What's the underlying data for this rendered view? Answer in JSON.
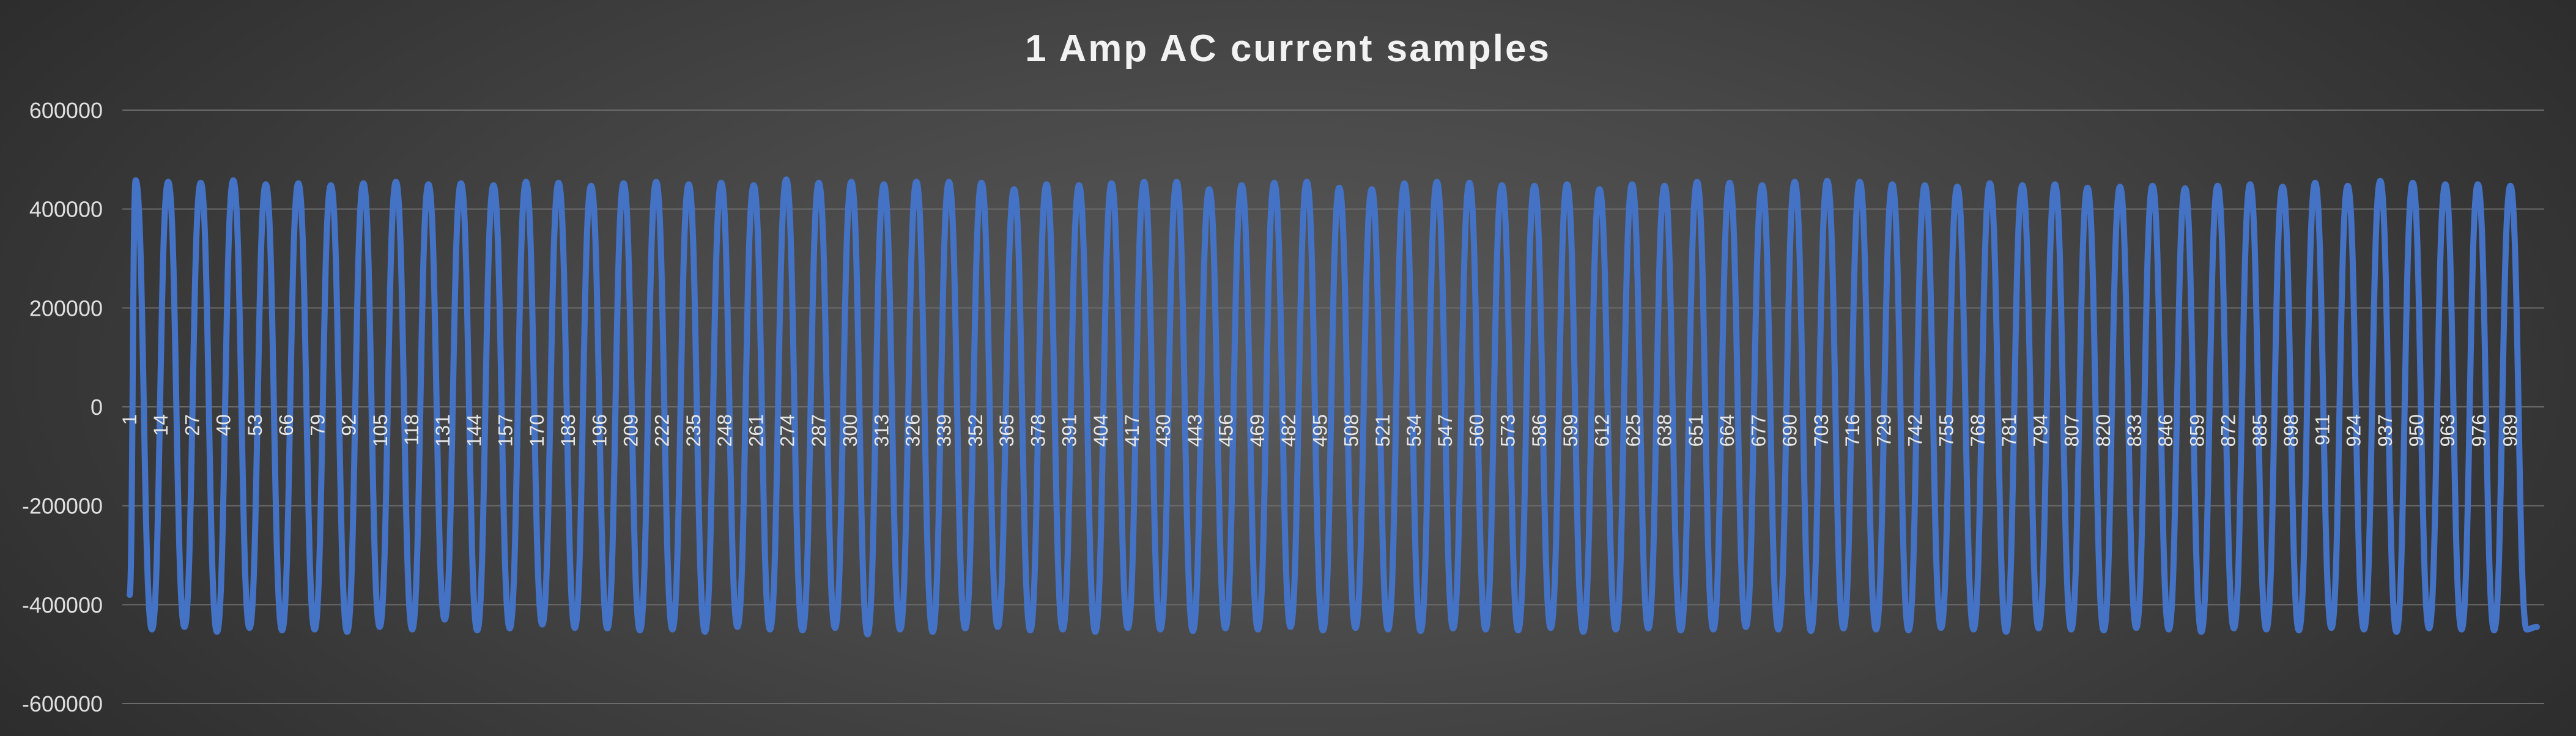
{
  "chart_data": {
    "type": "line",
    "title": "1 Amp AC current samples",
    "xlabel": "",
    "ylabel": "",
    "ylim": [
      -600000,
      600000
    ],
    "yticks": [
      600000,
      400000,
      200000,
      0,
      -200000,
      -400000,
      -600000
    ],
    "ytick_labels": [
      "600000",
      "400000",
      "200000",
      "0",
      "-200000",
      "-400000",
      "-600000"
    ],
    "x_range": [
      1,
      1000
    ],
    "xticks": [
      1,
      14,
      27,
      40,
      53,
      66,
      79,
      92,
      105,
      118,
      131,
      144,
      157,
      170,
      183,
      196,
      209,
      222,
      235,
      248,
      261,
      274,
      287,
      300,
      313,
      326,
      339,
      352,
      365,
      378,
      391,
      404,
      417,
      430,
      443,
      456,
      469,
      482,
      495,
      508,
      521,
      534,
      547,
      560,
      573,
      586,
      599,
      612,
      625,
      638,
      651,
      664,
      677,
      690,
      703,
      716,
      729,
      742,
      755,
      768,
      781,
      794,
      807,
      820,
      833,
      846,
      859,
      872,
      885,
      898,
      911,
      924,
      937,
      950,
      963,
      976,
      989
    ],
    "grid": true,
    "legend": "none",
    "series": [
      {
        "color": "#4472c4",
        "sample_count": 1000,
        "cycles": 74,
        "period_samples": 13.5,
        "first_value": -380000,
        "peaks": [
          458000,
          455000,
          453000,
          458000,
          450000,
          452000,
          448000,
          452000,
          455000,
          450000,
          452000,
          448000,
          455000,
          453000,
          447000,
          452000,
          455000,
          450000,
          453000,
          448000,
          460000,
          453000,
          455000,
          450000,
          455000,
          455000,
          453000,
          440000,
          450000,
          448000,
          452000,
          455000,
          455000,
          440000,
          448000,
          453000,
          455000,
          443000,
          440000,
          452000,
          455000,
          453000,
          448000,
          447000,
          450000,
          440000,
          450000,
          447000,
          455000,
          453000,
          448000,
          455000,
          457000,
          455000,
          450000,
          448000,
          445000,
          452000,
          448000,
          450000,
          443000,
          445000,
          447000,
          442000,
          447000,
          450000,
          445000,
          453000,
          447000,
          457000,
          453000,
          450000,
          450000,
          447000
        ],
        "troughs": [
          -450000,
          -445000,
          -455000,
          -447000,
          -452000,
          -450000,
          -455000,
          -445000,
          -450000,
          -430000,
          -452000,
          -448000,
          -440000,
          -447000,
          -448000,
          -452000,
          -450000,
          -455000,
          -445000,
          -450000,
          -452000,
          -447000,
          -460000,
          -450000,
          -455000,
          -448000,
          -445000,
          -452000,
          -450000,
          -455000,
          -447000,
          -450000,
          -453000,
          -448000,
          -450000,
          -445000,
          -452000,
          -447000,
          -450000,
          -453000,
          -448000,
          -450000,
          -452000,
          -447000,
          -455000,
          -450000,
          -448000,
          -452000,
          -450000,
          -445000,
          -450000,
          -453000,
          -448000,
          -450000,
          -452000,
          -447000,
          -450000,
          -455000,
          -448000,
          -450000,
          -452000,
          -447000,
          -450000,
          -455000,
          -448000,
          -450000,
          -452000,
          -447000,
          -450000,
          -455000,
          -448000,
          -450000,
          -452000,
          -450000
        ],
        "last_value": -445000
      }
    ]
  }
}
